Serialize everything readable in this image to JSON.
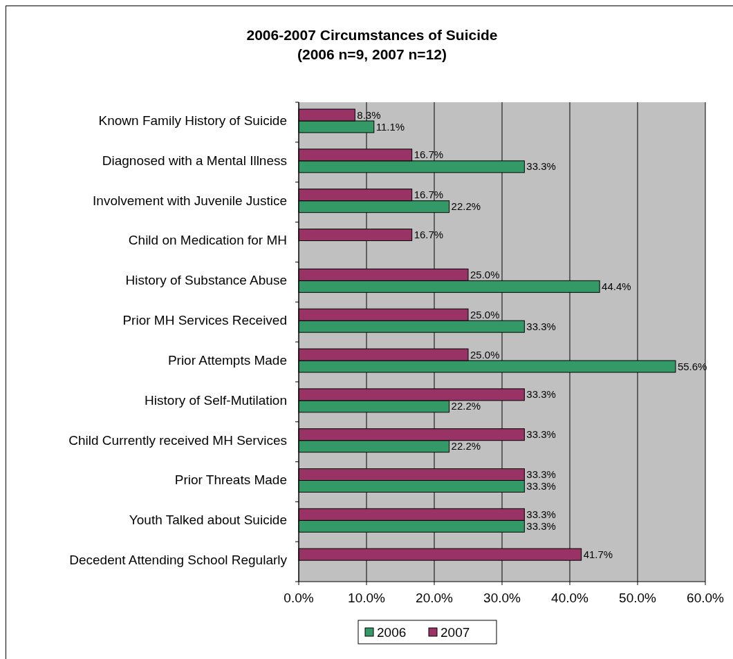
{
  "chart_data": {
    "type": "bar",
    "orientation": "horizontal",
    "title": "2006-2007 Circumstances of Suicide",
    "subtitle": "(2006 n=9, 2007 n=12)",
    "categories": [
      "Known Family History of Suicide",
      "Diagnosed with a Mental Illness",
      "Involvement with Juvenile Justice",
      "Child on Medication for MH",
      "History of Substance Abuse",
      "Prior MH Services Received",
      "Prior Attempts Made",
      "History of Self-Mutilation",
      "Child Currently received MH Services",
      "Prior Threats Made",
      "Youth Talked about Suicide",
      "Decedent Attending School Regularly"
    ],
    "series": [
      {
        "name": "2006",
        "color": "#339966",
        "values": [
          11.1,
          33.3,
          22.2,
          null,
          44.4,
          33.3,
          55.6,
          22.2,
          22.2,
          33.3,
          33.3,
          null
        ],
        "value_labels": [
          "11.1%",
          "33.3%",
          "22.2%",
          null,
          "44.4%",
          "33.3%",
          "55.6%",
          "22.2%",
          "22.2%",
          "33.3%",
          "33.3%",
          null
        ]
      },
      {
        "name": "2007",
        "color": "#993366",
        "values": [
          8.3,
          16.7,
          16.7,
          16.7,
          25.0,
          25.0,
          25.0,
          33.3,
          33.3,
          33.3,
          33.3,
          41.7
        ],
        "value_labels": [
          "8.3%",
          "16.7%",
          "16.7%",
          "16.7%",
          "25.0%",
          "25.0%",
          "25.0%",
          "33.3%",
          "33.3%",
          "33.3%",
          "33.3%",
          "41.7%"
        ]
      }
    ],
    "xlim": [
      0,
      60
    ],
    "xticks": [
      {
        "value": 0,
        "label": "0.0%"
      },
      {
        "value": 10,
        "label": "10.0%"
      },
      {
        "value": 20,
        "label": "20.0%"
      },
      {
        "value": 30,
        "label": "30.0%"
      },
      {
        "value": 40,
        "label": "40.0%"
      },
      {
        "value": 50,
        "label": "50.0%"
      },
      {
        "value": 60,
        "label": "60.0%"
      }
    ],
    "grid": "x",
    "legend": "bottom"
  }
}
